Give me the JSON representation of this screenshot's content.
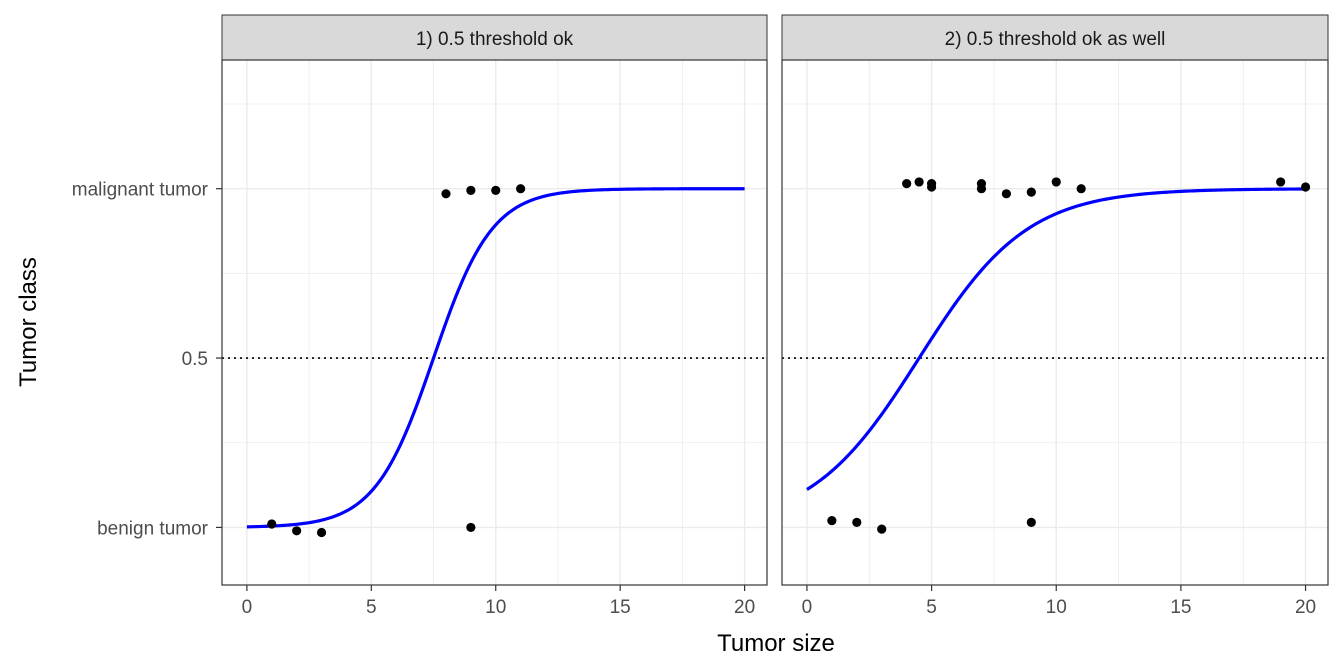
{
  "chart_data": {
    "type": "scatter",
    "xlabel": "Tumor size",
    "ylabel": "Tumor class",
    "y_tick_labels": [
      {
        "value": 0,
        "label": "benign tumor"
      },
      {
        "value": 0.5,
        "label": "0.5"
      },
      {
        "value": 1,
        "label": "malignant tumor"
      }
    ],
    "x_ticks": [
      0,
      5,
      10,
      15,
      20
    ],
    "xlim": [
      -1,
      20.9
    ],
    "ylim": [
      -0.17,
      1.38
    ],
    "threshold": 0.5,
    "colors": {
      "curve": "#0000ff",
      "points": "#000000",
      "strip_bg": "#d9d9d9",
      "grid": "#ebebeb"
    },
    "panels": [
      {
        "title": "1) 0.5 threshold ok",
        "curve": {
          "midpoint": 7.5,
          "slope": 0.85,
          "x_range": [
            0,
            20
          ]
        },
        "points": [
          {
            "x": 1,
            "y": 0.01
          },
          {
            "x": 2,
            "y": -0.01
          },
          {
            "x": 3,
            "y": -0.015
          },
          {
            "x": 9,
            "y": 0.0
          },
          {
            "x": 8,
            "y": 0.985
          },
          {
            "x": 9,
            "y": 0.995
          },
          {
            "x": 10,
            "y": 0.995
          },
          {
            "x": 11,
            "y": 1.0
          }
        ]
      },
      {
        "title": "2) 0.5 threshold ok as well",
        "curve": {
          "midpoint": 4.5,
          "slope": 0.46,
          "x_range": [
            0,
            20
          ]
        },
        "points": [
          {
            "x": 1,
            "y": 0.02
          },
          {
            "x": 2,
            "y": 0.015
          },
          {
            "x": 3,
            "y": -0.005
          },
          {
            "x": 9,
            "y": 0.015
          },
          {
            "x": 4,
            "y": 1.015
          },
          {
            "x": 4.5,
            "y": 1.02
          },
          {
            "x": 5,
            "y": 1.015
          },
          {
            "x": 5,
            "y": 1.005
          },
          {
            "x": 7,
            "y": 1.015
          },
          {
            "x": 7,
            "y": 1.0
          },
          {
            "x": 8,
            "y": 0.985
          },
          {
            "x": 9,
            "y": 0.99
          },
          {
            "x": 10,
            "y": 1.02
          },
          {
            "x": 11,
            "y": 1.0
          },
          {
            "x": 19,
            "y": 1.02
          },
          {
            "x": 20,
            "y": 1.005
          }
        ]
      }
    ]
  }
}
